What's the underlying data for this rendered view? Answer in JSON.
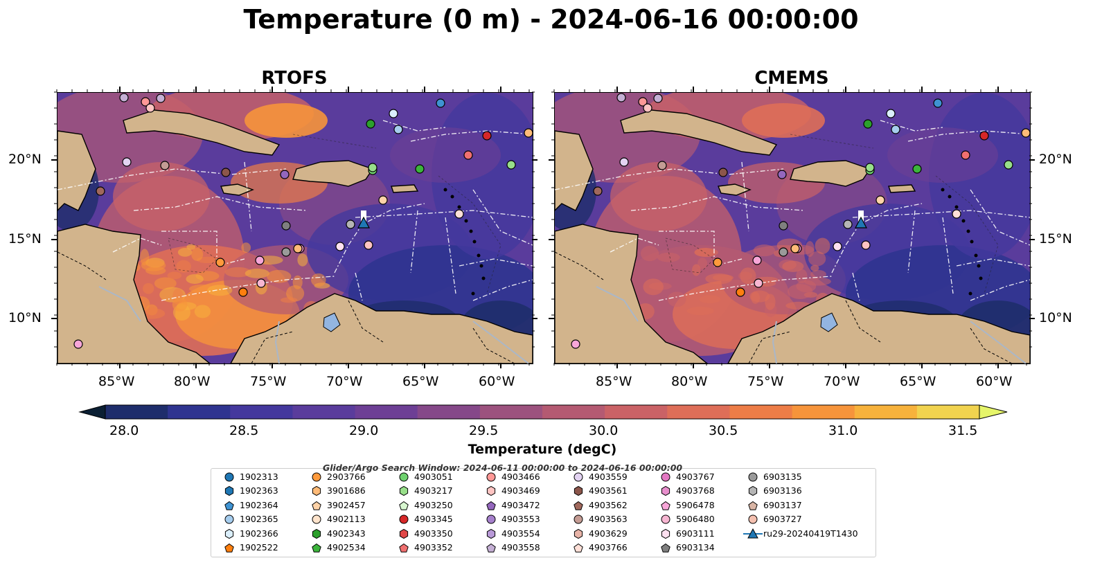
{
  "figure": {
    "title": "Temperature (0 m) - 2024-06-16 00:00:00",
    "panels": [
      {
        "title": "RTOFS",
        "tint": "warm"
      },
      {
        "title": "CMEMS",
        "tint": "warm"
      }
    ],
    "latitude_labels": [
      "20°N",
      "15°N",
      "10°N"
    ],
    "longitude_labels": [
      "85°W",
      "80°W",
      "75°W",
      "70°W",
      "65°W",
      "60°W"
    ]
  },
  "colorbar": {
    "label": "Temperature (degC)",
    "ticks": [
      "28.0",
      "28.5",
      "29.0",
      "29.5",
      "30.0",
      "30.5",
      "31.0",
      "31.5"
    ],
    "levels": [
      28.0,
      28.25,
      28.5,
      28.75,
      29.0,
      29.25,
      29.5,
      29.75,
      30.0,
      30.25,
      30.5,
      30.75,
      31.0,
      31.25,
      31.5
    ],
    "colors": [
      "#0b1f33",
      "#1e2d6b",
      "#2f3490",
      "#44389d",
      "#5a3c9c",
      "#6d3f95",
      "#854889",
      "#9c527e",
      "#b45a72",
      "#ca6266",
      "#de6e58",
      "#ed7d47",
      "#f6943b",
      "#f7b23c",
      "#f1d34f",
      "#e6f56a"
    ]
  },
  "legend": {
    "title": "Glider/Argo Search Window: 2024-06-11 00:00:00 to 2024-06-16 00:00:00",
    "columns": [
      [
        {
          "label": "1902313",
          "marker": "circle",
          "color": "#1f77b4"
        },
        {
          "label": "1902363",
          "marker": "hexagon",
          "color": "#1f77b4"
        },
        {
          "label": "1902364",
          "marker": "pentagon",
          "color": "#3f93d2"
        },
        {
          "label": "1902365",
          "marker": "circle",
          "color": "#a6cdee"
        },
        {
          "label": "1902366",
          "marker": "hexagon",
          "color": "#dbeffc"
        },
        {
          "label": "1902522",
          "marker": "pentagon",
          "color": "#ff7f0e"
        }
      ],
      [
        {
          "label": "2903766",
          "marker": "circle",
          "color": "#ff9a3c"
        },
        {
          "label": "3901686",
          "marker": "hexagon",
          "color": "#ffbb78"
        },
        {
          "label": "3902457",
          "marker": "pentagon",
          "color": "#ffd3a8"
        },
        {
          "label": "4902113",
          "marker": "circle",
          "color": "#ffe4cc"
        },
        {
          "label": "4902343",
          "marker": "hexagon",
          "color": "#2ca02c"
        },
        {
          "label": "4902534",
          "marker": "pentagon",
          "color": "#3cb43c"
        }
      ],
      [
        {
          "label": "4903051",
          "marker": "circle",
          "color": "#6fd16f"
        },
        {
          "label": "4903217",
          "marker": "hexagon",
          "color": "#98df8a"
        },
        {
          "label": "4903250",
          "marker": "pentagon",
          "color": "#d8f7d0"
        },
        {
          "label": "4903345",
          "marker": "circle",
          "color": "#d62728"
        },
        {
          "label": "4903350",
          "marker": "hexagon",
          "color": "#e04848"
        },
        {
          "label": "4903352",
          "marker": "pentagon",
          "color": "#f07070"
        }
      ],
      [
        {
          "label": "4903466",
          "marker": "circle",
          "color": "#ff9896"
        },
        {
          "label": "4903469",
          "marker": "hexagon",
          "color": "#ffc4c2"
        },
        {
          "label": "4903472",
          "marker": "pentagon",
          "color": "#9467bd"
        },
        {
          "label": "4903553",
          "marker": "circle",
          "color": "#a680cc"
        },
        {
          "label": "4903554",
          "marker": "hexagon",
          "color": "#b99ad8"
        },
        {
          "label": "4903558",
          "marker": "pentagon",
          "color": "#c5b0d5"
        }
      ],
      [
        {
          "label": "4903559",
          "marker": "circle",
          "color": "#e3d3f2"
        },
        {
          "label": "4903561",
          "marker": "hexagon",
          "color": "#8c564b"
        },
        {
          "label": "4903562",
          "marker": "pentagon",
          "color": "#a0685c"
        },
        {
          "label": "4903563",
          "marker": "circle",
          "color": "#c49c94"
        },
        {
          "label": "4903629",
          "marker": "hexagon",
          "color": "#e8b4a8"
        },
        {
          "label": "4903766",
          "marker": "pentagon",
          "color": "#ffe0d8"
        }
      ],
      [
        {
          "label": "4903767",
          "marker": "circle",
          "color": "#e377c2"
        },
        {
          "label": "4903768",
          "marker": "hexagon",
          "color": "#e88fcd"
        },
        {
          "label": "5906478",
          "marker": "pentagon",
          "color": "#f7a6d8"
        },
        {
          "label": "5906480",
          "marker": "circle",
          "color": "#f7b6d2"
        },
        {
          "label": "6903111",
          "marker": "hexagon",
          "color": "#fde0f0"
        },
        {
          "label": "6903134",
          "marker": "pentagon",
          "color": "#7f7f7f"
        }
      ],
      [
        {
          "label": "6903135",
          "marker": "circle",
          "color": "#9a9a9a"
        },
        {
          "label": "6903136",
          "marker": "hexagon",
          "color": "#b5b5b5"
        },
        {
          "label": "6903137",
          "marker": "pentagon",
          "color": "#d9b5a5"
        },
        {
          "label": "6903727",
          "marker": "circle",
          "color": "#f4c0b0"
        },
        {
          "label": "ru29-20240419T1430",
          "marker": "triangle-line",
          "color": "#1f77b4"
        }
      ]
    ]
  }
}
